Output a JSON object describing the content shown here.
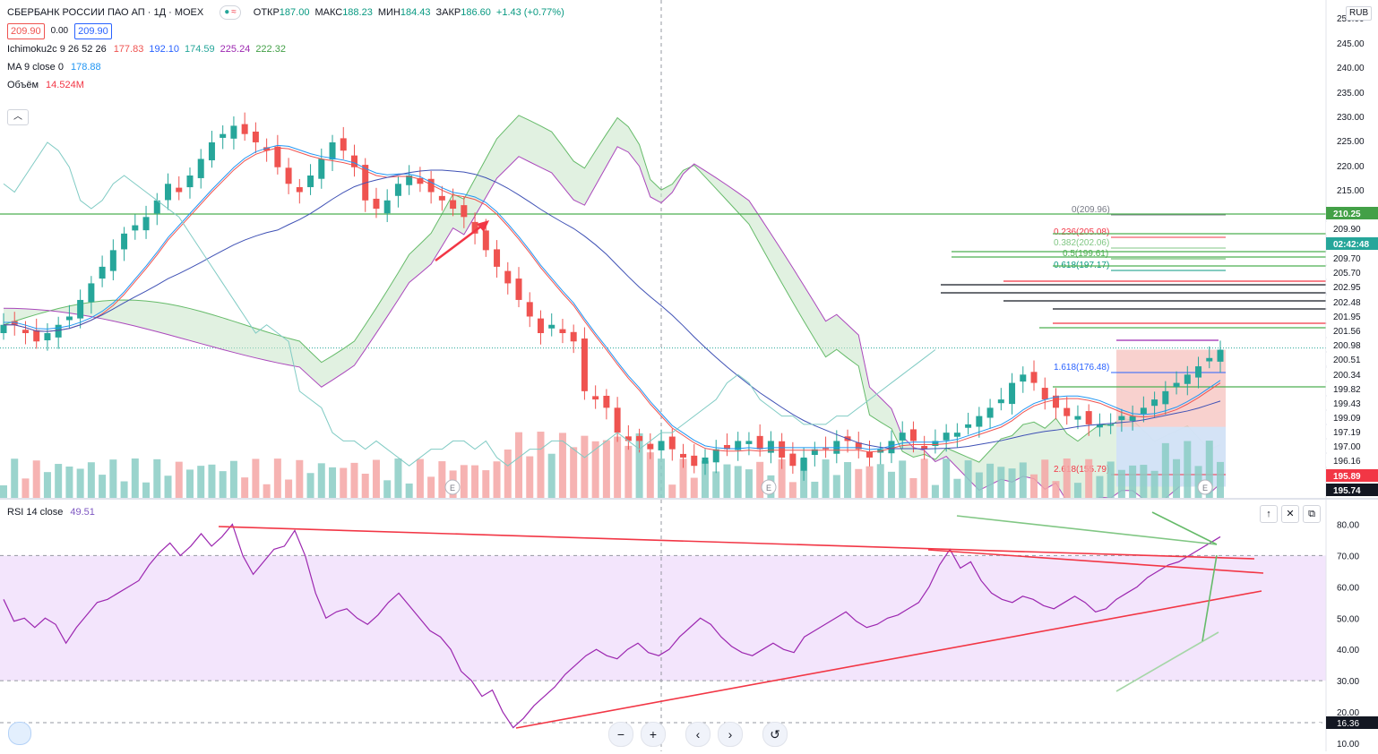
{
  "header": {
    "symbol": "СБЕРБАНК РОССИИ ПАО АП · 1Д · MOEX",
    "ohlc": [
      {
        "label": "ОТКР",
        "value": "187.00"
      },
      {
        "label": "МАКС",
        "value": "188.23"
      },
      {
        "label": "МИН",
        "value": "184.43"
      },
      {
        "label": "ЗАКР",
        "value": "186.60"
      }
    ],
    "change": "+1.43 (+0.77%)",
    "sell_price": "209.90",
    "spread": "0.00",
    "buy_price": "209.90",
    "currency": "RUB",
    "toggle_icon": "≈"
  },
  "indicators": {
    "ichimoku": {
      "name": "Ichimoku2c 9 26 52 26",
      "values": [
        {
          "v": "177.83",
          "color": "#ef5350"
        },
        {
          "v": "192.10",
          "color": "#2962ff"
        },
        {
          "v": "174.59",
          "color": "#26a69a"
        },
        {
          "v": "225.24",
          "color": "#9c27b0"
        },
        {
          "v": "222.32",
          "color": "#43a047"
        }
      ]
    },
    "ma": {
      "name": "MA 9 close 0",
      "value": "178.88"
    },
    "volume": {
      "name": "Объём",
      "value": "14.524M"
    },
    "rsi": {
      "name": "RSI 14 close",
      "value": "49.51"
    }
  },
  "price_axis": {
    "labels": [
      "250.00",
      "245.00",
      "240.00",
      "235.00",
      "230.00",
      "225.00",
      "220.00",
      "215.00"
    ],
    "right_labels": [
      {
        "text": "210.25",
        "bg": "#43a047",
        "fg": "#ffffff"
      },
      {
        "text": "209.90",
        "bg": "#ffffff",
        "fg": "#131722"
      },
      {
        "text": "02:42:48",
        "bg": "#26a69a",
        "fg": "#ffffff"
      },
      {
        "text": "209.70",
        "bg": "#ffffff",
        "fg": "#131722"
      },
      {
        "text": "205.70",
        "bg": "#ffffff",
        "fg": "#131722"
      },
      {
        "text": "202.95",
        "bg": "#ffffff",
        "fg": "#131722"
      },
      {
        "text": "202.48",
        "bg": "#ffffff",
        "fg": "#131722"
      },
      {
        "text": "201.95",
        "bg": "#ffffff",
        "fg": "#131722"
      },
      {
        "text": "201.56",
        "bg": "#ffffff",
        "fg": "#131722"
      },
      {
        "text": "200.98",
        "bg": "#ffffff",
        "fg": "#131722"
      },
      {
        "text": "200.51",
        "bg": "#ffffff",
        "fg": "#131722"
      },
      {
        "text": "200.34",
        "bg": "#ffffff",
        "fg": "#131722"
      },
      {
        "text": "199.82",
        "bg": "#ffffff",
        "fg": "#131722"
      },
      {
        "text": "199.43",
        "bg": "#ffffff",
        "fg": "#131722"
      },
      {
        "text": "199.09",
        "bg": "#ffffff",
        "fg": "#131722"
      },
      {
        "text": "197.19",
        "bg": "#ffffff",
        "fg": "#131722"
      },
      {
        "text": "197.00",
        "bg": "#ffffff",
        "fg": "#131722"
      },
      {
        "text": "196.16",
        "bg": "#ffffff",
        "fg": "#131722"
      },
      {
        "text": "195.89",
        "bg": "#f23645",
        "fg": "#ffffff"
      },
      {
        "text": "195.74",
        "bg": "#131722",
        "fg": "#ffffff"
      }
    ]
  },
  "fib_labels": [
    {
      "text": "0(209.96)",
      "color": "#787b86"
    },
    {
      "text": "0.236(205.08)",
      "color": "#f23645"
    },
    {
      "text": "0.382(202.06)",
      "color": "#81c784"
    },
    {
      "text": "0.5(199.61)",
      "color": "#4caf50"
    },
    {
      "text": "0.618(197.17)",
      "color": "#089981"
    },
    {
      "text": "1.618(176.48)",
      "color": "#2962ff"
    },
    {
      "text": "2.618(155.79)",
      "color": "#f23645"
    }
  ],
  "rsi_axis": {
    "labels": [
      "80.00",
      "70.00",
      "60.00",
      "50.00",
      "40.00",
      "30.00",
      "20.00",
      "10.00"
    ],
    "cursor_label": "16.36"
  },
  "rsi_buttons": [
    "↑",
    "✕",
    "⧉"
  ],
  "nav_buttons": [
    "−",
    "+",
    "‹",
    "›",
    "↺"
  ],
  "chart_data": [
    {
      "type": "candlestick",
      "title": "СБЕРБАНК РОССИИ ПАО АП · 1Д · MOEX",
      "ylim": [
        193,
        250
      ],
      "close_path": [
        213,
        213,
        212,
        211,
        212,
        213,
        214,
        216,
        218,
        220,
        222,
        224,
        225,
        226,
        228,
        230,
        229,
        231,
        233,
        235,
        236,
        237,
        236,
        235,
        234,
        232,
        230,
        229,
        231,
        233,
        235,
        234,
        232,
        228,
        227,
        228,
        230,
        231,
        230,
        229,
        228,
        227,
        226,
        224,
        222,
        220,
        218,
        216,
        214,
        212,
        213,
        212,
        211,
        205,
        204,
        203,
        200,
        199,
        199,
        198,
        199,
        198,
        197,
        196,
        197,
        198,
        198,
        199,
        199,
        198,
        199,
        197,
        196,
        197,
        198,
        198,
        199,
        199,
        198,
        197,
        198,
        199,
        200,
        199,
        198,
        199,
        200,
        200,
        201,
        202,
        203,
        204,
        206,
        207,
        206,
        204,
        203,
        202,
        202,
        201,
        201,
        201,
        202,
        202,
        203,
        204,
        205,
        206,
        207,
        208,
        209,
        210
      ]
    },
    {
      "type": "line",
      "title": "RSI 14 close",
      "ylim": [
        10,
        85
      ],
      "series": [
        {
          "name": "RSI 14 close",
          "values": [
            56,
            49,
            50,
            47,
            50,
            48,
            42,
            47,
            51,
            55,
            56,
            58,
            60,
            62,
            67,
            71,
            74,
            70,
            73,
            77,
            73,
            76,
            80,
            70,
            64,
            68,
            72,
            73,
            78,
            70,
            58,
            50,
            52,
            53,
            50,
            48,
            51,
            55,
            58,
            54,
            50,
            46,
            44,
            40,
            33,
            30,
            25,
            27,
            20,
            15,
            18,
            22,
            25,
            28,
            32,
            35,
            38,
            40,
            38,
            37,
            40,
            42,
            39,
            38,
            40,
            44,
            47,
            50,
            48,
            44,
            41,
            39,
            38,
            40,
            42,
            40,
            39,
            44,
            46,
            48,
            50,
            52,
            49,
            47,
            48,
            50,
            51,
            53,
            55,
            60,
            67,
            72,
            66,
            68,
            62,
            58,
            56,
            55,
            57,
            56,
            54,
            53,
            55,
            57,
            55,
            52,
            53,
            56,
            58,
            60,
            63,
            65,
            67,
            68,
            70,
            72,
            74,
            76
          ]
        }
      ],
      "bands": [
        30,
        70
      ]
    }
  ]
}
